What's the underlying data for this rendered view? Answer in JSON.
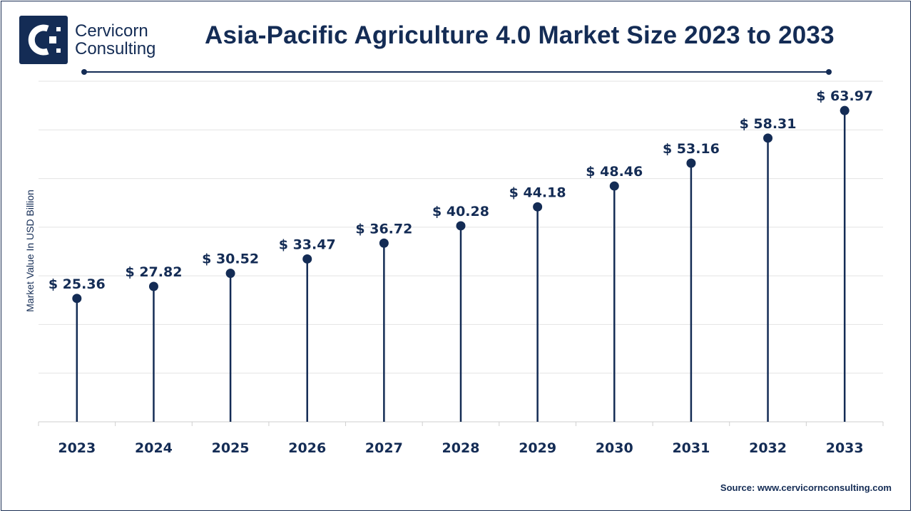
{
  "brand": {
    "name_line1": "Cervicorn",
    "name_line2": "Consulting",
    "logo_color": "#142c55"
  },
  "source_text": "Source: www.cervicornconsulting.com",
  "colors": {
    "primary": "#142c55",
    "grid": "#e3e3e3"
  },
  "chart_data": {
    "type": "lollipop",
    "title": "Asia-Pacific Agriculture 4.0 Market Size 2023 to 2033",
    "ylabel": "Market Value In USD Billion",
    "xlabel": "",
    "categories": [
      "2023",
      "2024",
      "2025",
      "2026",
      "2027",
      "2028",
      "2029",
      "2030",
      "2031",
      "2032",
      "2033"
    ],
    "values": [
      25.36,
      27.82,
      30.52,
      33.47,
      36.72,
      40.28,
      44.18,
      48.46,
      53.16,
      58.31,
      63.97
    ],
    "value_prefix": "$ ",
    "ylim": [
      0,
      70
    ],
    "grid": true,
    "legend": "none"
  }
}
